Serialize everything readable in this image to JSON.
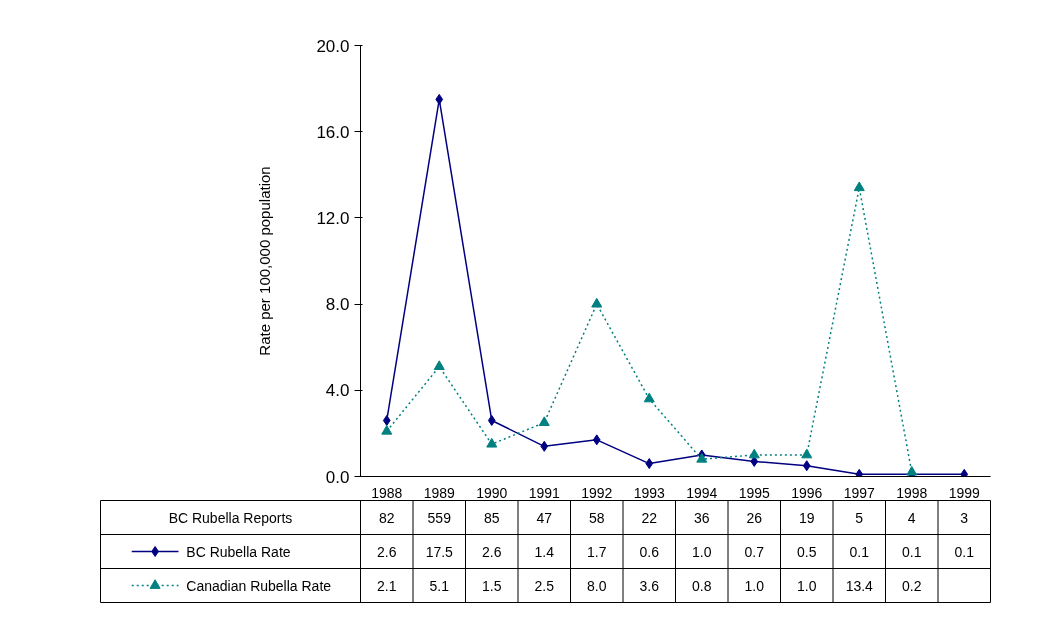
{
  "chart_data": {
    "type": "line",
    "ylabel": "Rate per 100,000 population",
    "categories": [
      "1988",
      "1989",
      "1990",
      "1991",
      "1992",
      "1993",
      "1994",
      "1995",
      "1996",
      "1997",
      "1998",
      "1999"
    ],
    "series": [
      {
        "name": "BC Rubella Rate",
        "color": "#000080",
        "marker": "diamond",
        "line_style": "solid",
        "values": [
          2.6,
          17.5,
          2.6,
          1.4,
          1.7,
          0.6,
          1.0,
          0.7,
          0.5,
          0.1,
          0.1,
          0.1
        ],
        "value_labels": [
          "2.6",
          "17.5",
          "2.6",
          "1.4",
          "1.7",
          "0.6",
          "1.0",
          "0.7",
          "0.5",
          "0.1",
          "0.1",
          "0.1"
        ]
      },
      {
        "name": "Canadian Rubella Rate",
        "color": "#008080",
        "marker": "triangle",
        "line_style": "dotted",
        "values": [
          2.1,
          5.1,
          1.5,
          2.5,
          8.0,
          3.6,
          0.8,
          1.0,
          1.0,
          13.4,
          0.2,
          null
        ],
        "value_labels": [
          "2.1",
          "5.1",
          "1.5",
          "2.5",
          "8.0",
          "3.6",
          "0.8",
          "1.0",
          "1.0",
          "13.4",
          "0.2",
          null
        ]
      }
    ],
    "annotations": [
      "BC Rubella Reports",
      "82",
      "559",
      "85",
      "47",
      "58",
      "22",
      "36",
      "26",
      "19",
      "5",
      "4",
      "3"
    ],
    "ylim": [
      0,
      20
    ],
    "yticks": [
      {
        "value": 0,
        "label": "0.0"
      },
      {
        "value": 4,
        "label": "4.0"
      },
      {
        "value": 8,
        "label": "8.0"
      },
      {
        "value": 12,
        "label": "12.0"
      },
      {
        "value": 16,
        "label": "16.0"
      },
      {
        "value": 20,
        "label": "20.0"
      }
    ],
    "grid": false,
    "legend": "bottom"
  }
}
